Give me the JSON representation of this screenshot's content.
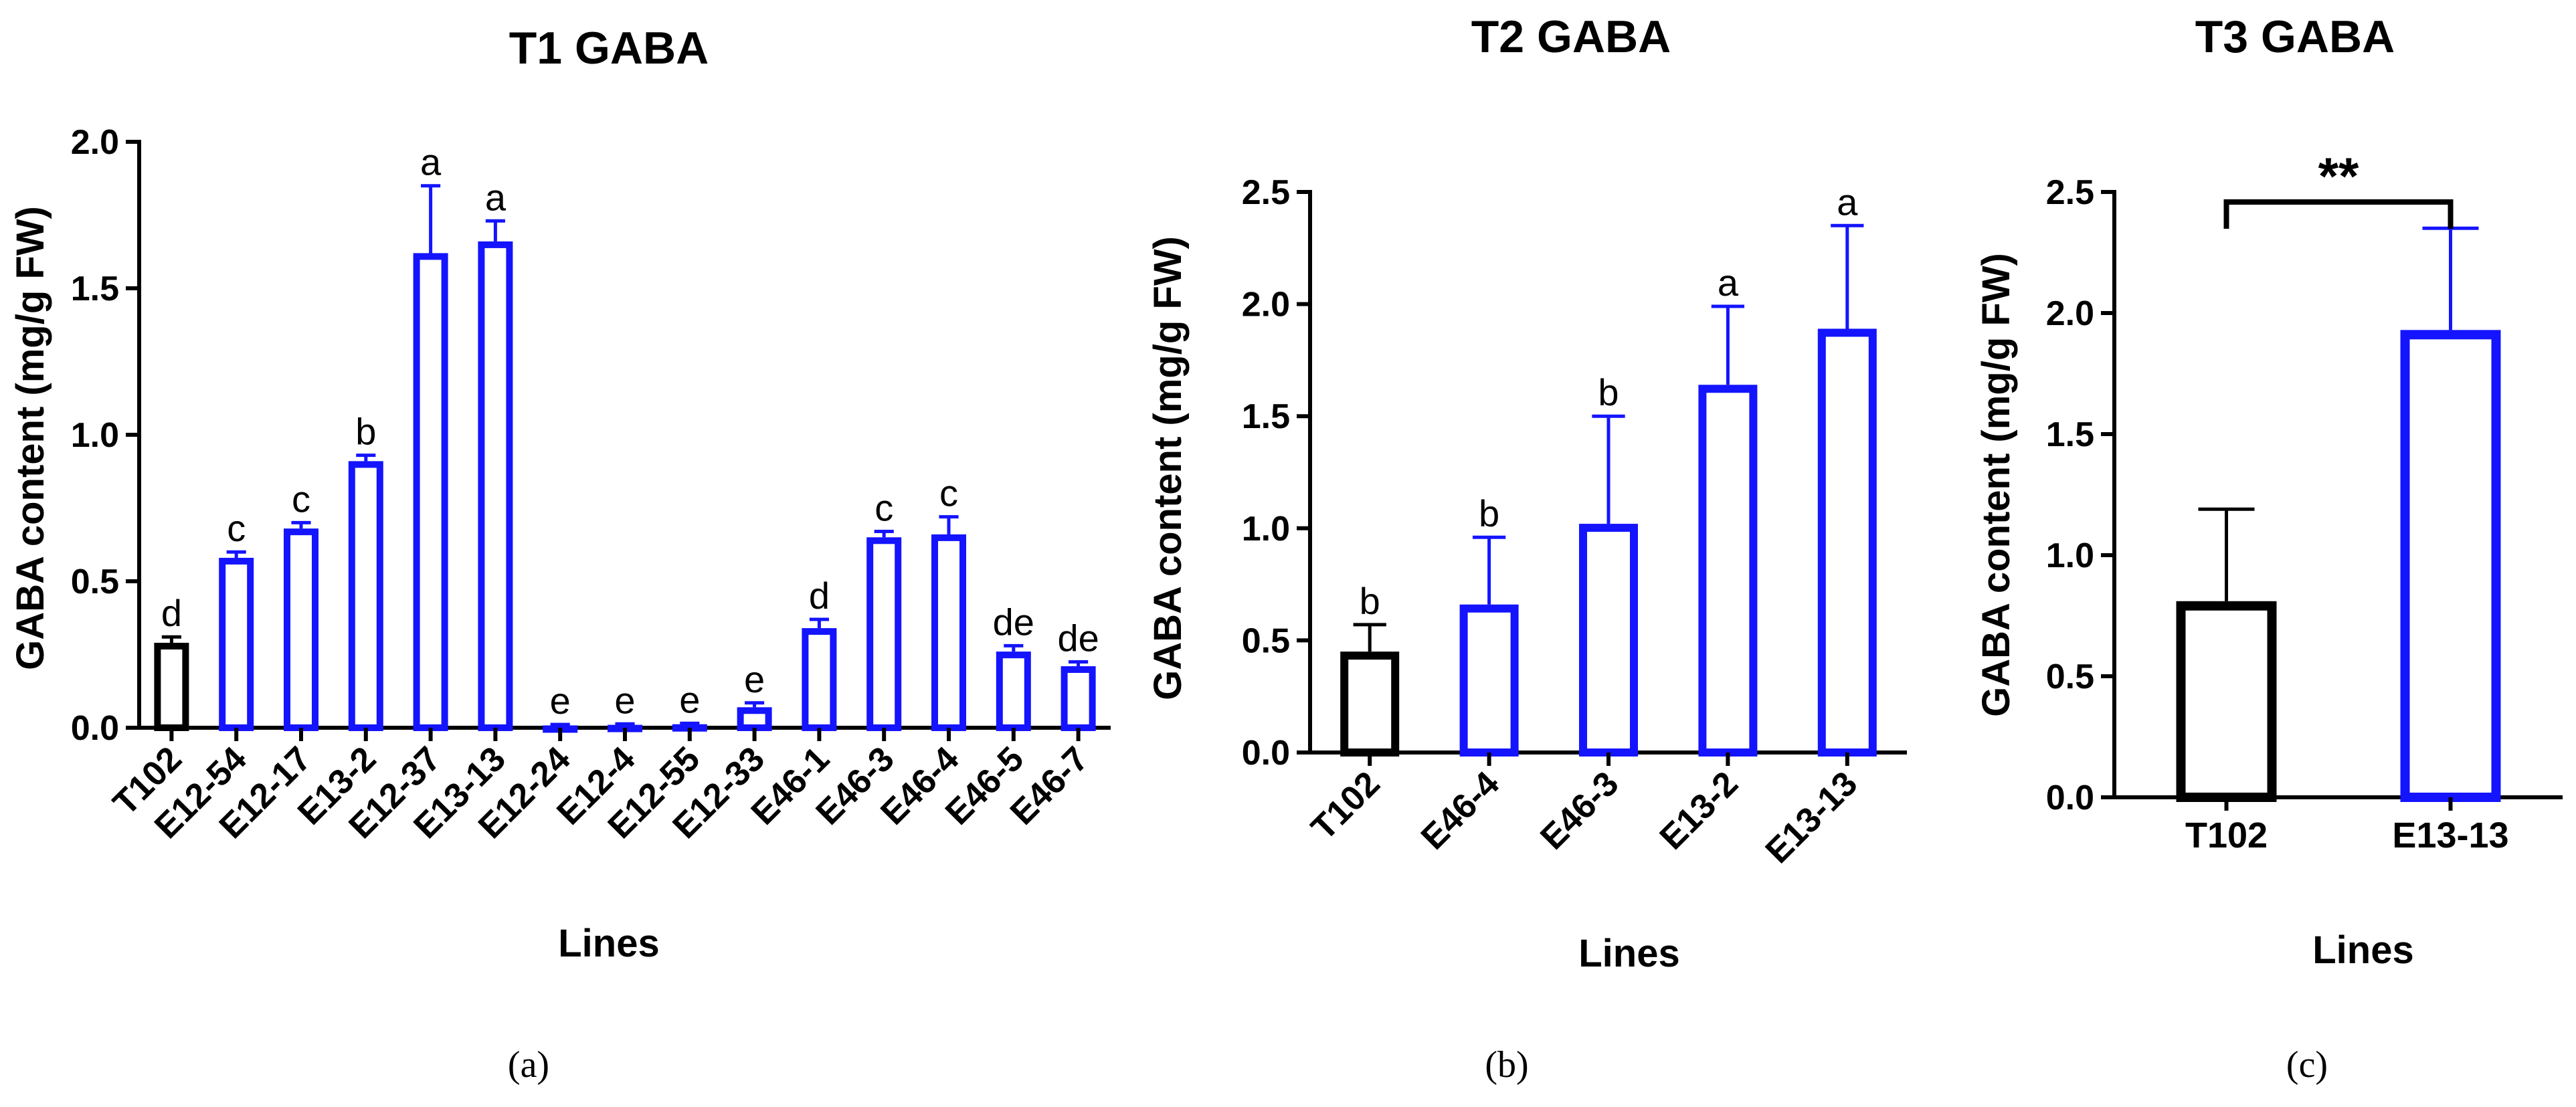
{
  "colors": {
    "control": "#000000",
    "transgenic": "#1414ff",
    "axis": "#000000",
    "background": "#ffffff"
  },
  "chart_data": [
    {
      "type": "bar",
      "title": "T1 GABA",
      "xlabel": "Lines",
      "ylabel": "GABA content (mg/g FW)",
      "ylim": [
        0,
        2.0
      ],
      "yticks": [
        0.0,
        0.5,
        1.0,
        1.5,
        2.0
      ],
      "ytick_labels": [
        "0.0",
        "0.5",
        "1.0",
        "1.5",
        "2.0"
      ],
      "categories": [
        "T102",
        "E12-54",
        "E12-17",
        "E13-2",
        "E12-37",
        "E13-13",
        "E12-24",
        "E12-4",
        "E12-55",
        "E12-33",
        "E46-1",
        "E46-3",
        "E46-4",
        "E46-5",
        "E46-7"
      ],
      "values": [
        0.29,
        0.58,
        0.68,
        0.91,
        1.62,
        1.66,
        0.008,
        0.01,
        0.012,
        0.07,
        0.34,
        0.65,
        0.66,
        0.26,
        0.21
      ],
      "errors": [
        0.02,
        0.02,
        0.02,
        0.02,
        0.23,
        0.07,
        0.003,
        0.003,
        0.003,
        0.015,
        0.03,
        0.02,
        0.06,
        0.02,
        0.015
      ],
      "letters": [
        "d",
        "c",
        "c",
        "b",
        "a",
        "a",
        "e",
        "e",
        "e",
        "e",
        "d",
        "c",
        "c",
        "de",
        "de"
      ],
      "bar_colors": [
        "control",
        "transgenic",
        "transgenic",
        "transgenic",
        "transgenic",
        "transgenic",
        "transgenic",
        "transgenic",
        "transgenic",
        "transgenic",
        "transgenic",
        "transgenic",
        "transgenic",
        "transgenic",
        "transgenic"
      ],
      "caption": "(a)"
    },
    {
      "type": "bar",
      "title": "T2 GABA",
      "xlabel": "Lines",
      "ylabel": "GABA content (mg/g FW)",
      "ylim": [
        0,
        2.5
      ],
      "yticks": [
        0.0,
        0.5,
        1.0,
        1.5,
        2.0,
        2.5
      ],
      "ytick_labels": [
        "0.0",
        "0.5",
        "1.0",
        "1.5",
        "2.0",
        "2.5"
      ],
      "categories": [
        "T102",
        "E46-4",
        "E46-3",
        "E13-2",
        "E13-13"
      ],
      "values": [
        0.45,
        0.66,
        1.02,
        1.64,
        1.89
      ],
      "errors": [
        0.12,
        0.3,
        0.48,
        0.35,
        0.46
      ],
      "letters": [
        "b",
        "b",
        "b",
        "a",
        "a"
      ],
      "bar_colors": [
        "control",
        "transgenic",
        "transgenic",
        "transgenic",
        "transgenic"
      ],
      "caption": "(b)"
    },
    {
      "type": "bar",
      "title": "T3 GABA",
      "xlabel": "Lines",
      "ylabel": "GABA content (mg/g FW)",
      "ylim": [
        0,
        2.5
      ],
      "yticks": [
        0.0,
        0.5,
        1.0,
        1.5,
        2.0,
        2.5
      ],
      "ytick_labels": [
        "0.0",
        "0.5",
        "1.0",
        "1.5",
        "2.0",
        "2.5"
      ],
      "categories": [
        "T102",
        "E13-13"
      ],
      "values": [
        0.81,
        1.93
      ],
      "errors": [
        0.38,
        0.42
      ],
      "significance": "**",
      "bar_colors": [
        "control",
        "transgenic"
      ],
      "caption": "(c)"
    }
  ]
}
